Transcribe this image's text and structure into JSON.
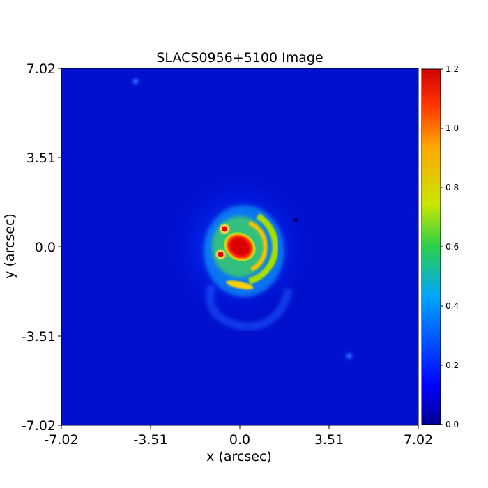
{
  "chart_data": {
    "type": "heatmap",
    "title": "SLACS0956+5100 Image",
    "xlabel": "x (arcsec)",
    "ylabel": "y (arcsec)",
    "xlim": [
      -7.02,
      7.02
    ],
    "ylim": [
      -7.02,
      7.02
    ],
    "xticks": [
      -7.02,
      -3.51,
      0.0,
      3.51,
      7.02
    ],
    "xtick_labels": [
      "-7.02",
      "-3.51",
      "0.0",
      "3.51",
      "7.02"
    ],
    "yticks": [
      -7.02,
      -3.51,
      0.0,
      3.51,
      7.02
    ],
    "ytick_labels": [
      "-7.02",
      "-3.51",
      "0.0",
      "3.51",
      "7.02"
    ],
    "colormap": "jet",
    "colorbar": {
      "min": 0.0,
      "max": 1.2,
      "ticks": [
        0.0,
        0.2,
        0.4,
        0.6,
        0.8,
        1.0,
        1.2
      ],
      "tick_labels": [
        "0.0",
        "0.2",
        "0.4",
        "0.6",
        "0.8",
        "1.0",
        "1.2"
      ]
    },
    "background_level": 0.05,
    "features": [
      {
        "kind": "core",
        "x": 0.0,
        "y": 0.0,
        "level": 1.2
      },
      {
        "kind": "arc",
        "center": [
          0.0,
          0.0
        ],
        "radius": 1.4,
        "level": 0.65
      },
      {
        "kind": "arc",
        "center": [
          0.0,
          -1.5
        ],
        "radius": 0.4,
        "level": 0.9
      },
      {
        "kind": "point",
        "x": -0.75,
        "y": -0.3,
        "level": 1.2
      },
      {
        "kind": "point",
        "x": -0.6,
        "y": 0.7,
        "level": 1.2
      },
      {
        "kind": "halo",
        "x": 0.0,
        "y": 0.0,
        "radius": 3.0,
        "level": 0.25
      },
      {
        "kind": "blob",
        "x": 4.3,
        "y": -4.3,
        "level": 0.3
      },
      {
        "kind": "blob",
        "x": -4.1,
        "y": 6.5,
        "level": 0.25
      },
      {
        "kind": "blob",
        "x": 2.2,
        "y": 1.05,
        "level": 0.02
      }
    ]
  }
}
